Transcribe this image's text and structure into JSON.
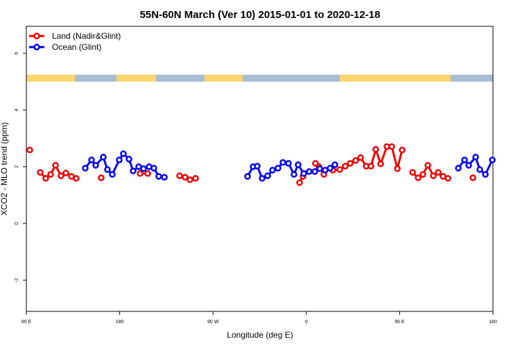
{
  "chart_data": {
    "type": "line",
    "title": "55N-60N March (Ver 10)   2015-01-01 to 2020-12-18",
    "x_label": "Longitude (deg E)",
    "y_label": "XCO2 - MLO trend (ppm)",
    "xlim": [
      90,
      540
    ],
    "xticks": [
      {
        "value": 90,
        "label": "90 E"
      },
      180,
      {
        "value": 270,
        "label": "90 W"
      },
      {
        "value": 360,
        "label": "0"
      },
      {
        "value": 450,
        "label": "90 E"
      },
      {
        "value": 540,
        "label": "180"
      }
    ],
    "ylim": [
      -3.1,
      6.95
    ],
    "yticks": [
      -2,
      0,
      2,
      4,
      6
    ],
    "legend": "top-left",
    "series": [
      {
        "name": "Land (Nadir&Glint)",
        "color": "#ee0000",
        "x": [
          93.3,
          null,
          103.4,
          108.7,
          113.4,
          118.1,
          123.4,
          128.1,
          133.5,
          138.1,
          null,
          162.2,
          null,
          199.7,
          207.0,
          null,
          237.8,
          243.1,
          247.8,
          253.2,
          null,
          353.5,
          356.8,
          null,
          368.8,
          372.2,
          376.9,
          null,
          385.6,
          392.3,
          397.6,
          402.3,
          407.6,
          412.3,
          417.7,
          422.3,
          427.0,
          431.7,
          437.7,
          442.4,
          447.8,
          452.4,
          null,
          462.5,
          467.8,
          472.5,
          477.2,
          482.5,
          487.2,
          491.9,
          496.6,
          null,
          520.6
        ],
        "values": [
          2.59,
          null,
          1.8,
          1.59,
          1.73,
          2.05,
          1.68,
          1.78,
          1.66,
          1.59,
          null,
          1.61,
          null,
          1.76,
          1.76,
          null,
          1.68,
          1.63,
          1.54,
          1.59,
          null,
          1.44,
          1.66,
          null,
          2.12,
          2.0,
          1.73,
          null,
          1.88,
          1.9,
          2.02,
          2.12,
          2.22,
          2.32,
          2.02,
          2.02,
          2.61,
          2.1,
          2.71,
          2.71,
          1.93,
          2.59,
          null,
          1.8,
          1.61,
          1.73,
          2.05,
          1.68,
          1.8,
          1.66,
          1.59,
          null,
          1.61
        ]
      },
      {
        "name": "Ocean (Glint)",
        "color": "#0000ee",
        "x": [
          146.8,
          152.9,
          156.9,
          164.2,
          168.2,
          172.9,
          179.6,
          183.6,
          189.0,
          193.0,
          198.3,
          203.0,
          208.4,
          213.0,
          217.7,
          223.1,
          null,
          303.3,
          308.7,
          312.7,
          317.4,
          322.7,
          327.4,
          332.7,
          337.4,
          342.8,
          348.1,
          352.1,
          357.5,
          362.8,
          368.2,
          372.9,
          378.2,
          382.9,
          387.6,
          null,
          506.6,
          512.6,
          516.6,
          523.3,
          527.3,
          532.7,
          539.4
        ],
        "values": [
          1.95,
          2.24,
          2.05,
          2.34,
          1.9,
          1.73,
          2.24,
          2.46,
          2.27,
          1.85,
          2.0,
          1.93,
          2.0,
          1.95,
          1.66,
          1.63,
          null,
          1.66,
          2.0,
          2.02,
          1.59,
          1.68,
          1.88,
          1.95,
          2.15,
          2.12,
          1.73,
          2.07,
          1.76,
          1.83,
          1.83,
          1.93,
          1.88,
          1.95,
          2.07,
          null,
          1.95,
          2.24,
          2.05,
          2.34,
          1.9,
          1.73,
          2.24
        ]
      }
    ]
  }
}
